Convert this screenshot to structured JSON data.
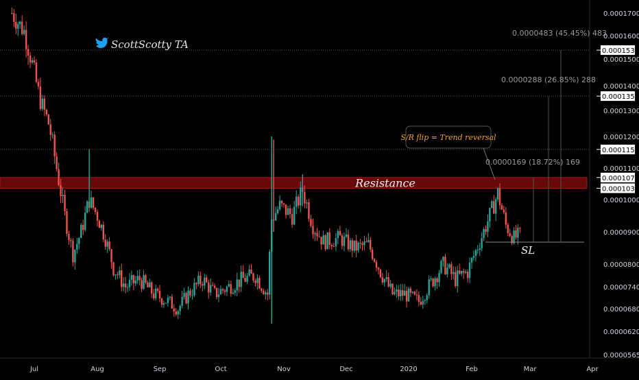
{
  "chart_data": {
    "type": "candlestick",
    "watermark": "ScottScotty TA",
    "watermark_icon": "twitter-bird-icon",
    "x_ticks": [
      "Jul",
      "Aug",
      "Sep",
      "Oct",
      "Nov",
      "Dec",
      "2020",
      "Feb",
      "Mar",
      "Apr"
    ],
    "y_ticks": [
      "0.0001700",
      "0.0001600",
      "0.0001500",
      "0.0001400",
      "0.0001300",
      "0.0001200",
      "0.0001100",
      "0.0001000",
      "0.0000900",
      "0.0000800",
      "0.0000740",
      "0.0000680",
      "0.0000620",
      "0.0000565"
    ],
    "y_range": [
      5.65e-05,
      0.000175
    ],
    "price_tags": [
      {
        "label": "0.0001538",
        "price": 0.0001538
      },
      {
        "label": "0.0001358",
        "price": 0.0001358
      },
      {
        "label": "0.0001159",
        "price": 0.0001159
      },
      {
        "label": "0.0001070",
        "price": 0.000107
      },
      {
        "label": "0.0001036",
        "price": 0.0001036
      }
    ],
    "resistance_zone": {
      "label": "Resistance",
      "top": 0.000107,
      "bottom": 0.0001036,
      "color": "#7a0a0a"
    },
    "stop_loss": {
      "label": "SL",
      "price": 8.68e-05
    },
    "annotation": {
      "text": "S/R flip = Trend reversal",
      "color": "#f0a030"
    },
    "targets": [
      {
        "text": "0.0000169 (18.72%) 169",
        "price": 0.000107
      },
      {
        "text": "0.0000288 (26.85%) 288",
        "price": 0.0001358
      },
      {
        "text": "0.0000483 (45.45%) 483",
        "price": 0.0001538
      }
    ],
    "colors": {
      "up": "#26a69a",
      "down": "#ef5350",
      "background": "#000000",
      "axis_text": "#d1d4dc",
      "level_line": "#555555"
    },
    "price_path": [
      {
        "date": "2019-06-20",
        "close": 0.00017
      },
      {
        "date": "2019-06-26",
        "close": 0.000162
      },
      {
        "date": "2019-06-30",
        "close": 0.000148
      },
      {
        "date": "2019-07-04",
        "close": 0.000134
      },
      {
        "date": "2019-07-08",
        "close": 0.000125
      },
      {
        "date": "2019-07-12",
        "close": 0.00011
      },
      {
        "date": "2019-07-16",
        "close": 9.5e-05
      },
      {
        "date": "2019-07-20",
        "close": 8.3e-05
      },
      {
        "date": "2019-07-24",
        "close": 9e-05
      },
      {
        "date": "2019-07-28",
        "close": 0.0001
      },
      {
        "date": "2019-08-01",
        "close": 9.5e-05
      },
      {
        "date": "2019-08-05",
        "close": 8.8e-05
      },
      {
        "date": "2019-08-09",
        "close": 7.9e-05
      },
      {
        "date": "2019-08-15",
        "close": 7.4e-05
      },
      {
        "date": "2019-08-22",
        "close": 7.6e-05
      },
      {
        "date": "2019-08-29",
        "close": 7.2e-05
      },
      {
        "date": "2019-09-05",
        "close": 7e-05
      },
      {
        "date": "2019-09-10",
        "close": 6.8e-05
      },
      {
        "date": "2019-09-15",
        "close": 7.2e-05
      },
      {
        "date": "2019-09-22",
        "close": 7.6e-05
      },
      {
        "date": "2019-09-28",
        "close": 7.2e-05
      },
      {
        "date": "2019-10-05",
        "close": 7.4e-05
      },
      {
        "date": "2019-10-12",
        "close": 7.6e-05
      },
      {
        "date": "2019-10-18",
        "close": 7.7e-05
      },
      {
        "date": "2019-10-24",
        "close": 7.2e-05
      },
      {
        "date": "2019-10-26",
        "close": 9.4e-05
      },
      {
        "date": "2019-10-30",
        "close": 9.8e-05
      },
      {
        "date": "2019-11-05",
        "close": 9.5e-05
      },
      {
        "date": "2019-11-10",
        "close": 0.000103
      },
      {
        "date": "2019-11-15",
        "close": 9.2e-05
      },
      {
        "date": "2019-11-20",
        "close": 8.7e-05
      },
      {
        "date": "2019-11-28",
        "close": 8.8e-05
      },
      {
        "date": "2019-12-05",
        "close": 8.5e-05
      },
      {
        "date": "2019-12-12",
        "close": 8.6e-05
      },
      {
        "date": "2019-12-18",
        "close": 7.8e-05
      },
      {
        "date": "2019-12-24",
        "close": 7.2e-05
      },
      {
        "date": "2019-12-30",
        "close": 7.2e-05
      },
      {
        "date": "2020-01-06",
        "close": 7e-05
      },
      {
        "date": "2020-01-12",
        "close": 7.5e-05
      },
      {
        "date": "2020-01-18",
        "close": 8e-05
      },
      {
        "date": "2020-01-24",
        "close": 7.6e-05
      },
      {
        "date": "2020-01-30",
        "close": 7.8e-05
      },
      {
        "date": "2020-02-05",
        "close": 8.7e-05
      },
      {
        "date": "2020-02-10",
        "close": 9.5e-05
      },
      {
        "date": "2020-02-14",
        "close": 0.000102
      },
      {
        "date": "2020-02-18",
        "close": 9.2e-05
      },
      {
        "date": "2020-02-22",
        "close": 8.8e-05
      },
      {
        "date": "2020-02-25",
        "close": 8.9e-05
      }
    ]
  }
}
